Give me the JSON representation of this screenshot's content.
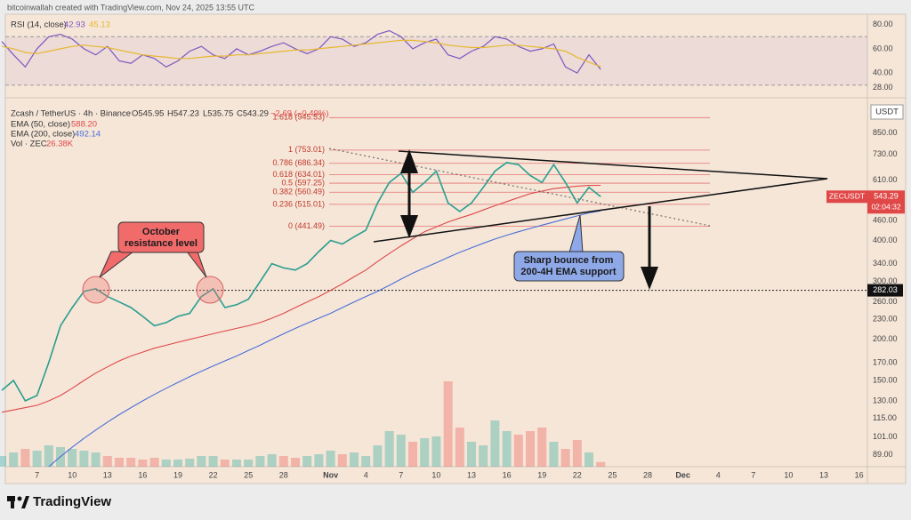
{
  "header": "bitcoinwallah created with TradingView.com, Nov 24, 2025 13:55 UTC",
  "footer_logo": "TradingView",
  "chart_data": [
    {
      "type": "line",
      "title": "RSI (14, close)",
      "categories": [
        null,
        null,
        null,
        "7",
        null,
        null,
        "10",
        null,
        null,
        "13",
        null,
        null,
        "16",
        null,
        null,
        "19",
        null,
        null,
        "22",
        null,
        null,
        "25",
        null,
        null,
        "28",
        null,
        null,
        null,
        "Nov",
        null,
        null,
        "4",
        null,
        null,
        "7",
        null,
        null,
        "10",
        null,
        null,
        "13",
        null,
        null,
        "16",
        null,
        null,
        "19",
        null,
        null,
        "22",
        null,
        null,
        "25",
        null,
        null,
        "28",
        null,
        null,
        "Dec",
        null,
        null,
        "4",
        null,
        null,
        "7",
        null,
        null,
        "10",
        null,
        null,
        "13",
        null,
        null,
        "16",
        null
      ],
      "series": [
        {
          "color": "#7e57c2",
          "values": [
            66,
            55,
            45,
            60,
            70,
            72,
            68,
            60,
            55,
            62,
            50,
            48,
            55,
            52,
            45,
            50,
            58,
            62,
            55,
            52,
            60,
            55,
            58,
            62,
            65,
            60,
            56,
            60,
            70,
            68,
            62,
            65,
            72,
            75,
            70,
            60,
            65,
            68,
            55,
            52,
            58,
            62,
            70,
            68,
            62,
            58,
            60,
            64,
            45,
            40,
            55,
            42.93,
            null,
            null,
            null,
            null,
            null,
            null,
            null,
            null,
            null,
            null,
            null,
            null,
            null,
            null,
            null,
            null,
            null,
            null,
            null,
            null,
            null,
            null,
            null
          ]
        },
        {
          "color": "#e8b730",
          "values": [
            62,
            60,
            57,
            56,
            58,
            60,
            62,
            63,
            62,
            61,
            59,
            57,
            55,
            54,
            53,
            52,
            52,
            53,
            54,
            54,
            55,
            55,
            56,
            57,
            58,
            59,
            59,
            60,
            61,
            62,
            63,
            64,
            65,
            66,
            67,
            67,
            66,
            65,
            63,
            62,
            61,
            61,
            62,
            63,
            63,
            62,
            61,
            60,
            58,
            53,
            49,
            45.13,
            null,
            null,
            null,
            null,
            null,
            null,
            null,
            null,
            null,
            null,
            null,
            null,
            null,
            null,
            null,
            null,
            null,
            null,
            null,
            null,
            null,
            null,
            null
          ]
        }
      ],
      "ylim": [
        21.7,
        88.6
      ],
      "yticks": [
        {
          "value": 80,
          "label": "80.00"
        },
        {
          "value": 60,
          "label": "60.00"
        },
        {
          "value": 40,
          "label": "40.00"
        },
        {
          "value": 28,
          "label": "28.00"
        }
      ],
      "bands": [
        70,
        30
      ],
      "grid": false
    },
    {
      "type": "line",
      "title": "Zcash / TetherUS · 4h · Binance",
      "ohlc": [
        "O545.95",
        "H547.23",
        "L535.75",
        "C543.29",
        "−2.69 (−0.49%)"
      ],
      "y_unit": "USDT",
      "categories": [
        null,
        null,
        null,
        "7",
        null,
        null,
        "10",
        null,
        null,
        "13",
        null,
        null,
        "16",
        null,
        null,
        "19",
        null,
        null,
        "22",
        null,
        null,
        "25",
        null,
        null,
        "28",
        null,
        null,
        null,
        "Nov",
        null,
        null,
        "4",
        null,
        null,
        "7",
        null,
        null,
        "10",
        null,
        null,
        "13",
        null,
        null,
        "16",
        null,
        null,
        "19",
        null,
        null,
        "22",
        null,
        null,
        "25",
        null,
        null,
        "28",
        null,
        null,
        "Dec",
        null,
        null,
        "4",
        null,
        null,
        "7",
        null,
        null,
        "10",
        null,
        null,
        "13",
        null,
        null,
        "16",
        null
      ],
      "series": [
        {
          "name": "ZECUSDT",
          "color": "#2a9d8f",
          "values": [
            140,
            150,
            130,
            135,
            170,
            220,
            250,
            280,
            285,
            270,
            260,
            250,
            235,
            220,
            225,
            235,
            240,
            270,
            285,
            250,
            255,
            265,
            300,
            340,
            330,
            325,
            340,
            370,
            400,
            390,
            410,
            430,
            520,
            600,
            640,
            560,
            600,
            650,
            520,
            490,
            520,
            580,
            650,
            690,
            680,
            630,
            600,
            680,
            600,
            520,
            580,
            543.29,
            null,
            null,
            null,
            null,
            null,
            null,
            null,
            null,
            null,
            null,
            null,
            null,
            null,
            null,
            null,
            null,
            null,
            null,
            null,
            null,
            null,
            null,
            null
          ]
        },
        {
          "name": "EMA (50, close)",
          "legend_value": "588.20",
          "color": "#e04848",
          "values": [
            120,
            122,
            124,
            126,
            130,
            135,
            142,
            150,
            158,
            165,
            172,
            178,
            183,
            188,
            192,
            196,
            200,
            204,
            208,
            212,
            216,
            220,
            225,
            232,
            240,
            250,
            260,
            270,
            282,
            295,
            310,
            325,
            345,
            365,
            385,
            405,
            425,
            440,
            455,
            468,
            480,
            495,
            510,
            525,
            540,
            555,
            565,
            575,
            580,
            585,
            588,
            588.2,
            null,
            null,
            null,
            null,
            null,
            null,
            null,
            null,
            null,
            null,
            null,
            null,
            null,
            null,
            null,
            null,
            null,
            null,
            null,
            null,
            null,
            null,
            null
          ]
        },
        {
          "name": "EMA (200, close)",
          "legend_value": "492.14",
          "color": "#4a6fd8",
          "values": [
            null,
            null,
            null,
            null,
            82,
            88,
            94,
            100,
            106,
            112,
            118,
            124,
            130,
            136,
            142,
            148,
            154,
            160,
            166,
            172,
            178,
            185,
            192,
            200,
            208,
            216,
            224,
            232,
            240,
            250,
            260,
            270,
            280,
            292,
            305,
            318,
            330,
            342,
            355,
            368,
            380,
            392,
            404,
            415,
            425,
            435,
            445,
            455,
            465,
            475,
            485,
            492.14,
            null,
            null,
            null,
            null,
            null,
            null,
            null,
            null,
            null,
            null,
            null,
            null,
            null,
            null,
            null,
            null,
            null,
            null,
            null,
            null,
            null,
            null,
            null
          ]
        }
      ],
      "volume": {
        "name": "Vol · ZEC",
        "legend_value": "26.38K",
        "ylim": [
          0,
          500
        ],
        "values": [
          60,
          80,
          100,
          90,
          120,
          110,
          100,
          90,
          80,
          60,
          50,
          50,
          40,
          50,
          40,
          40,
          45,
          60,
          60,
          40,
          40,
          40,
          60,
          70,
          60,
          50,
          60,
          70,
          90,
          70,
          80,
          60,
          120,
          200,
          180,
          140,
          160,
          170,
          480,
          220,
          140,
          120,
          260,
          200,
          180,
          200,
          220,
          140,
          100,
          150,
          80,
          26.38,
          null,
          null,
          null,
          null,
          null,
          null,
          null,
          null,
          null,
          null,
          null,
          null,
          null,
          null,
          null,
          null,
          null,
          null,
          null,
          null,
          null,
          null,
          null
        ]
      },
      "log_scale": true,
      "grid": false,
      "ylim": [
        82,
        1040
      ],
      "yticks": [
        {
          "value": 850,
          "label": "850.00"
        },
        {
          "value": 730,
          "label": "730.00"
        },
        {
          "value": 610,
          "label": "610.00"
        },
        {
          "value": 460,
          "label": "460.00"
        },
        {
          "value": 400,
          "label": "400.00"
        },
        {
          "value": 340,
          "label": "340.00"
        },
        {
          "value": 300,
          "label": "300.00"
        },
        {
          "value": 260,
          "label": "260.00"
        },
        {
          "value": 230,
          "label": "230.00"
        },
        {
          "value": 200,
          "label": "200.00"
        },
        {
          "value": 170,
          "label": "170.00"
        },
        {
          "value": 150,
          "label": "150.00"
        },
        {
          "value": 130,
          "label": "130.00"
        },
        {
          "value": 115,
          "label": "115.00"
        },
        {
          "value": 101,
          "label": "101.00"
        },
        {
          "value": 89,
          "label": "89.00"
        }
      ],
      "countdown": "02:04:32",
      "resistance": 282.03,
      "fib_levels": [
        {
          "label": "1.618 (945.53)",
          "value": 945.53
        },
        {
          "label": "1 (753.01)",
          "value": 753.01
        },
        {
          "label": "0.786 (686.34)",
          "value": 686.34
        },
        {
          "label": "0.618 (634.01)",
          "value": 634.01
        },
        {
          "label": "0.5 (597.25)",
          "value": 597.25
        },
        {
          "label": "0.382 (560.49)",
          "value": 560.49
        },
        {
          "label": "0.236 (515.01)",
          "value": 515.01
        },
        {
          "label": "0 (441.49)",
          "value": 441.49
        }
      ],
      "annotations": [
        [
          "October",
          "resistance level"
        ],
        [
          "Sharp bounce from",
          "200-4H EMA support"
        ]
      ]
    }
  ]
}
